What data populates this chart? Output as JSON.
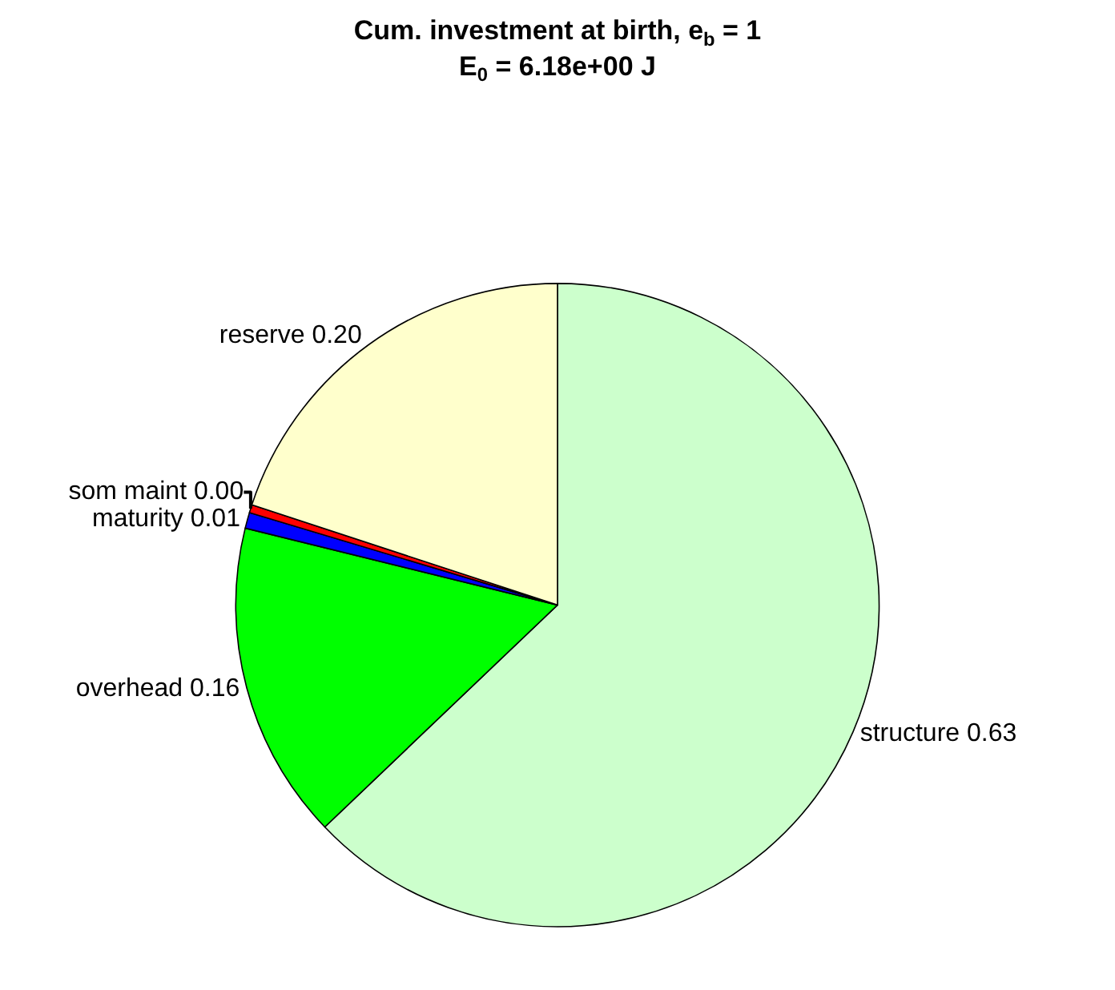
{
  "chart_data": {
    "type": "pie",
    "title": "Cum. investment at birth, e$_{b}$ = 1",
    "subtitle": "E$_{0}$ = 6.18e+00 J",
    "categories": [
      "structure",
      "overhead",
      "maturity",
      "som maint",
      "reserve"
    ],
    "values": [
      0.63,
      0.16,
      0.008,
      0.004,
      0.2
    ],
    "value_labels": [
      "0.63",
      "0.16",
      "0.01",
      "0.00",
      "0.20"
    ],
    "colors": [
      "#ccffcc",
      "#00ff00",
      "#0000ff",
      "#ff0000",
      "#ffffcc"
    ],
    "legend": false
  }
}
